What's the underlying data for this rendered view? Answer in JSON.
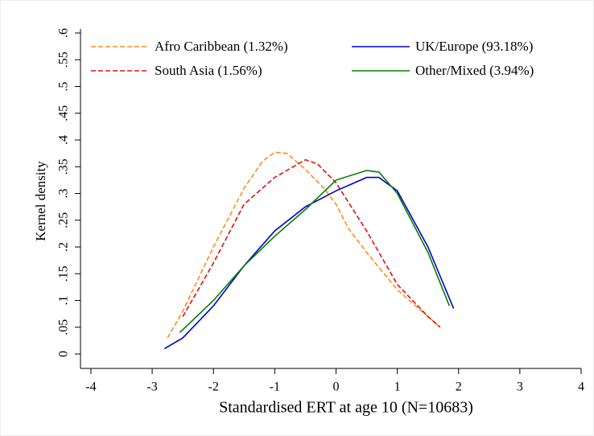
{
  "chart_data": {
    "type": "line",
    "x_label": "Standardised ERT at age 10 (N=10683)",
    "y_label": "Kernel density",
    "xlim": [
      -4.17,
      4
    ],
    "xticks": [
      -4,
      -3,
      -2,
      -1,
      0,
      1,
      2,
      3,
      4
    ],
    "ylim": [
      -0.027,
      0.6
    ],
    "yticks": [
      0,
      {
        "value": 0.05,
        "label": ".05"
      },
      {
        "value": 0.1,
        "label": ".1"
      },
      {
        "value": 0.15,
        "label": ".15"
      },
      {
        "value": 0.2,
        "label": ".2"
      },
      {
        "value": 0.25,
        "label": ".25"
      },
      {
        "value": 0.3,
        "label": ".3"
      },
      {
        "value": 0.35,
        "label": ".35"
      },
      {
        "value": 0.4,
        "label": ".4"
      },
      {
        "value": 0.45,
        "label": ".45"
      },
      {
        "value": 0.5,
        "label": ".5"
      },
      {
        "value": 0.55,
        "label": ".55"
      },
      {
        "value": 0.6,
        "label": ".6"
      }
    ],
    "grid": false,
    "series": [
      {
        "name": "Afro Caribbean (1.32%)",
        "color": "#ff8c1a",
        "dashed": true,
        "x": [
          -2.75,
          -2.5,
          -2,
          -1.5,
          -1.2,
          -1,
          -0.8,
          -0.5,
          -0.2,
          0,
          0.2,
          0.5,
          1,
          1.5,
          1.7
        ],
        "values": [
          0.03,
          0.08,
          0.2,
          0.31,
          0.36,
          0.377,
          0.375,
          0.345,
          0.31,
          0.28,
          0.235,
          0.19,
          0.12,
          0.07,
          0.05
        ]
      },
      {
        "name": "South Asia (1.56%)",
        "color": "#e01010",
        "dashed": true,
        "x": [
          -2.5,
          -2,
          -1.5,
          -1,
          -0.5,
          -0.3,
          0,
          0.5,
          1,
          1.5,
          1.7
        ],
        "values": [
          0.07,
          0.17,
          0.28,
          0.33,
          0.363,
          0.355,
          0.32,
          0.23,
          0.13,
          0.07,
          0.05
        ]
      },
      {
        "name": "UK/Europe (93.18%)",
        "color": "#0000cc",
        "dashed": false,
        "x": [
          -2.8,
          -2.5,
          -2,
          -1.5,
          -1,
          -0.5,
          0,
          0.5,
          0.7,
          1,
          1.5,
          1.92
        ],
        "values": [
          0.01,
          0.03,
          0.09,
          0.165,
          0.23,
          0.275,
          0.305,
          0.33,
          0.33,
          0.305,
          0.2,
          0.085
        ]
      },
      {
        "name": "Other/Mixed (3.94%)",
        "color": "#008000",
        "dashed": false,
        "x": [
          -2.55,
          -2,
          -1.5,
          -1,
          -0.5,
          0,
          0.5,
          0.7,
          1,
          1.5,
          1.85
        ],
        "values": [
          0.04,
          0.1,
          0.165,
          0.22,
          0.27,
          0.325,
          0.343,
          0.34,
          0.3,
          0.19,
          0.09
        ]
      }
    ]
  }
}
